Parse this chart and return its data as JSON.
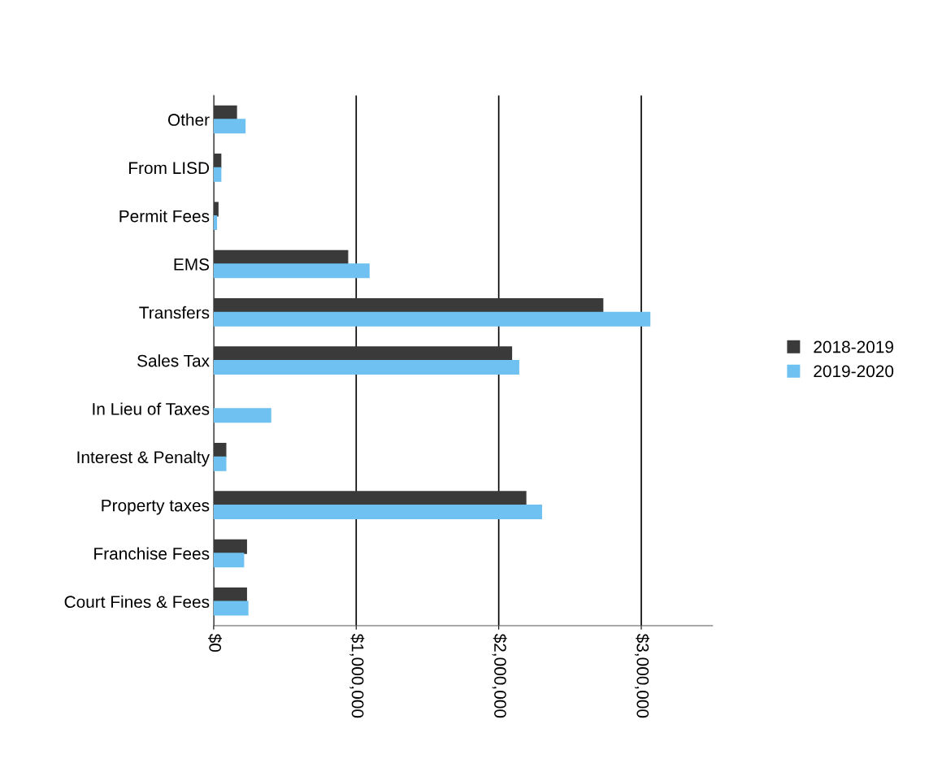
{
  "chart_data": {
    "type": "bar",
    "orientation": "horizontal",
    "categories": [
      "Other",
      "From LISD",
      "Permit Fees",
      "EMS",
      "Transfers",
      "Sales Tax",
      "In Lieu of Taxes",
      "Interest & Penalty",
      "Property taxes",
      "Franchise Fees",
      "Court Fines & Fees"
    ],
    "series": [
      {
        "name": "2018-2019",
        "color": "#3a3a3a",
        "values": [
          160000,
          50000,
          30000,
          940000,
          2730000,
          2090000,
          null,
          85000,
          2190000,
          230000,
          230000
        ]
      },
      {
        "name": "2019-2020",
        "color": "#6ec1f0",
        "values": [
          220000,
          50000,
          20000,
          1090000,
          3060000,
          2140000,
          400000,
          85000,
          2300000,
          210000,
          240000
        ]
      }
    ],
    "xlim": [
      0,
      3500000
    ],
    "xticks": [
      {
        "value": 0,
        "label": "$0"
      },
      {
        "value": 1000000,
        "label": "$1,000,000"
      },
      {
        "value": 2000000,
        "label": "$2,000,000"
      },
      {
        "value": 3000000,
        "label": "$3,000,000"
      }
    ],
    "grid": "x",
    "legend": "right"
  }
}
